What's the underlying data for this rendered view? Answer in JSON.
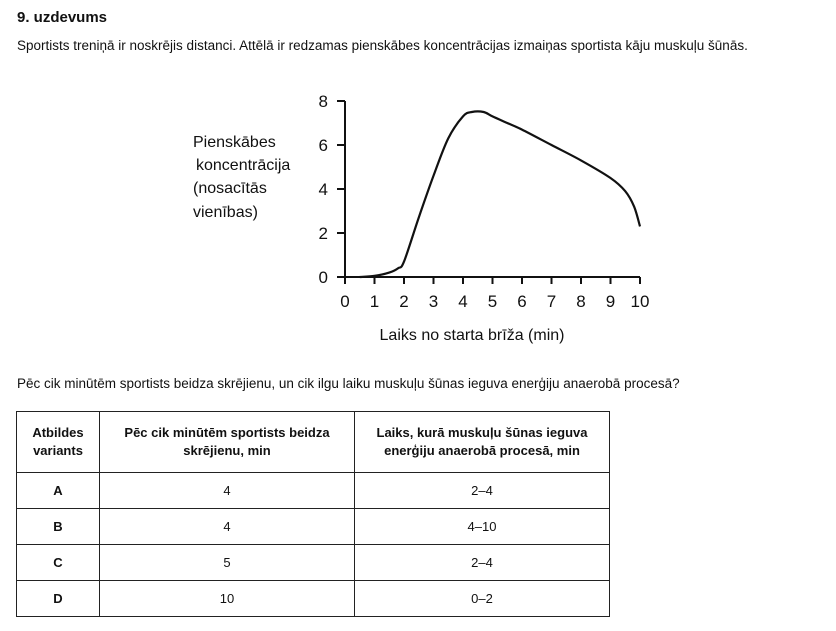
{
  "task": {
    "title": "9. uzdevums",
    "intro": "Sportists treniņā ir noskrējis distanci. Attēlā ir redzamas pienskābes koncentrācijas izmaiņas sportista kāju muskuļu šūnās.",
    "question": "Pēc cik minūtēm sportists beidza skrējienu, un cik ilgu laiku muskuļu šūnas ieguva enerģiju anaerobā procesā?"
  },
  "chart_data": {
    "type": "line",
    "ylabel_lines": [
      "Pienskābes",
      "koncentrācija",
      "(nosacītās",
      "vienības)"
    ],
    "xlabel": "Laiks no starta brīža (min)",
    "xlim": [
      0,
      10
    ],
    "ylim": [
      0,
      8
    ],
    "x_ticks": [
      "0",
      "1",
      "2",
      "3",
      "4",
      "5",
      "6",
      "7",
      "8",
      "9",
      "10"
    ],
    "y_ticks": [
      "0",
      "2",
      "4",
      "6",
      "8"
    ],
    "grid": false,
    "series": [
      {
        "x": [
          0.5,
          1.0,
          1.5,
          1.8,
          2.0,
          2.5,
          3.0,
          3.5,
          4.0,
          4.3,
          4.7,
          5.0,
          5.5,
          6.0,
          7.0,
          8.0,
          9.0,
          9.5,
          9.8,
          10.0
        ],
        "y": [
          0.0,
          0.05,
          0.2,
          0.4,
          0.7,
          2.7,
          4.6,
          6.3,
          7.3,
          7.5,
          7.5,
          7.3,
          7.0,
          6.7,
          6.0,
          5.3,
          4.5,
          3.9,
          3.2,
          2.3
        ]
      }
    ]
  },
  "table": {
    "headers": [
      "Atbildes variants",
      "Pēc cik minūtēm sportists beidza skrējienu, min",
      "Laiks, kurā muskuļu šūnas ieguva enerģiju anaerobā procesā, min"
    ],
    "rows": [
      [
        "A",
        "4",
        "2–4"
      ],
      [
        "B",
        "4",
        "4–10"
      ],
      [
        "C",
        "5",
        "2–4"
      ],
      [
        "D",
        "10",
        "0–2"
      ]
    ]
  }
}
